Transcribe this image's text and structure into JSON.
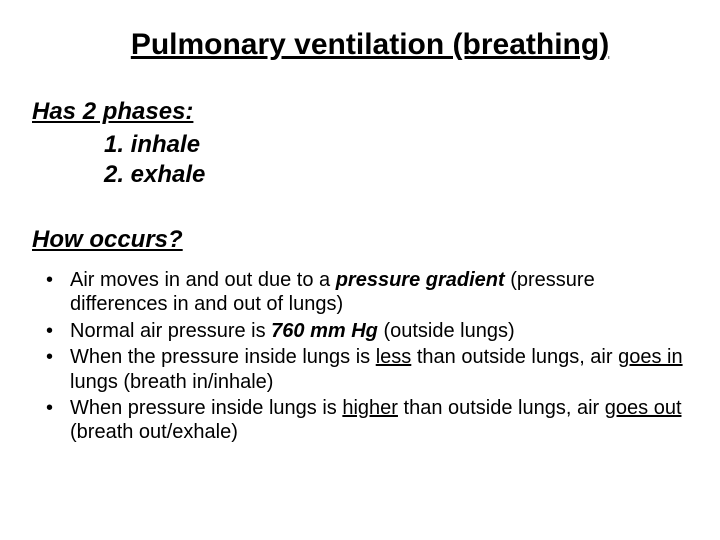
{
  "title": "Pulmonary ventilation (breathing)",
  "phases_head": "Has 2 phases:",
  "phase1": "1. inhale",
  "phase2": "2. exhale",
  "how_head": "How occurs?",
  "b1_a": "Air moves in and out due to a ",
  "b1_b": "pressure gradient",
  "b1_c": " (pressure differences in and out of lungs)",
  "b2_a": "Normal air pressure is ",
  "b2_b": "760 mm Hg",
  "b2_c": " (outside lungs)",
  "b3_a": "When the pressure inside lungs is ",
  "b3_b": "less",
  "b3_c": " than outside lungs, air ",
  "b3_d": "goes in",
  "b3_e": " lungs (breath in/inhale)",
  "b4_a": "When pressure inside lungs is ",
  "b4_b": "higher",
  "b4_c": " than outside lungs, air ",
  "b4_d": "goes out",
  "b4_e": " (breath out/exhale)",
  "colors": {
    "text": "#000000",
    "background": "#ffffff"
  },
  "fonts": {
    "title_pt": 30,
    "subhead_pt": 24,
    "body_pt": 20,
    "family": "Arial"
  }
}
